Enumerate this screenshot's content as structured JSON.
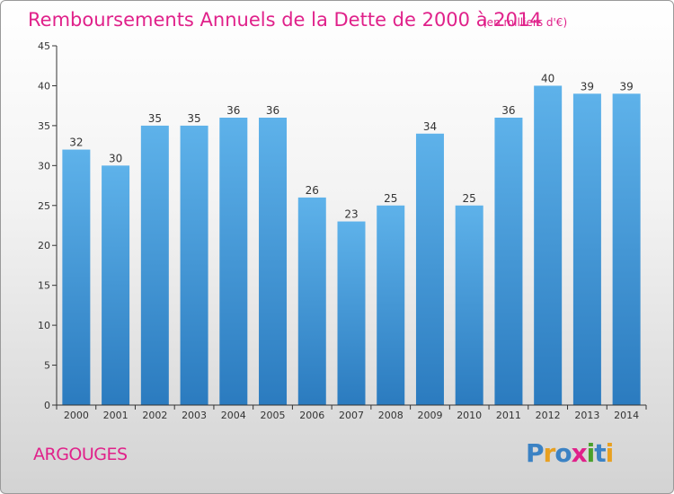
{
  "chart_data": {
    "type": "bar",
    "title": "Remboursements Annuels de la Dette de 2000 à 2014",
    "subtitle": "(en milliers d'€)",
    "categories": [
      "2000",
      "2001",
      "2002",
      "2003",
      "2004",
      "2005",
      "2006",
      "2007",
      "2008",
      "2009",
      "2010",
      "2011",
      "2012",
      "2013",
      "2014"
    ],
    "values": [
      32,
      30,
      35,
      35,
      36,
      36,
      26,
      23,
      25,
      34,
      25,
      36,
      40,
      39,
      39
    ],
    "ylim": [
      0,
      45
    ],
    "yticks": [
      0,
      5,
      10,
      15,
      20,
      25,
      30,
      35,
      40,
      45
    ],
    "xlabel": "",
    "ylabel": "",
    "grid": false
  },
  "footer": {
    "place": "ARGOUGES",
    "brand_letters": [
      {
        "ch": "P",
        "color": "#3b82c4"
      },
      {
        "ch": "r",
        "color": "#e8a020"
      },
      {
        "ch": "o",
        "color": "#3b82c4"
      },
      {
        "ch": "x",
        "color": "#e0218a"
      },
      {
        "ch": "i",
        "color": "#4aa02c"
      },
      {
        "ch": "t",
        "color": "#3b82c4"
      },
      {
        "ch": "i",
        "color": "#e8a020"
      }
    ]
  },
  "colors": {
    "title": "#e0218a",
    "bar_top": "#5eb2ea",
    "bar_bottom": "#2b7bbf",
    "axis": "#333333"
  }
}
